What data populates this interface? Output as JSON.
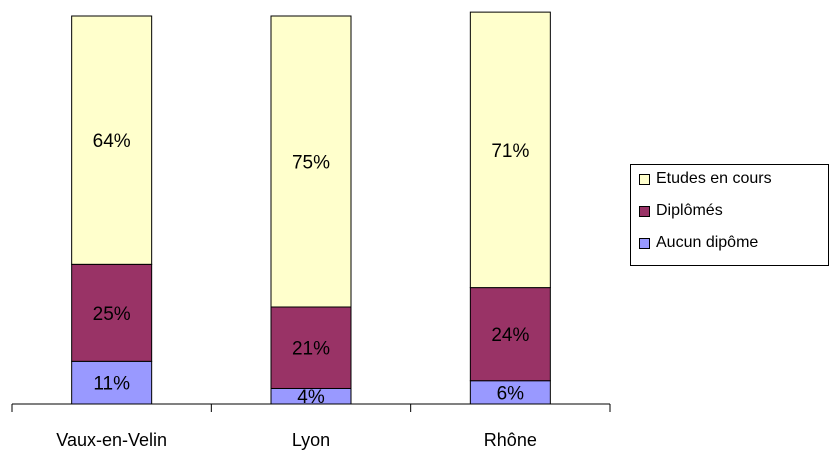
{
  "chart_data": {
    "type": "bar",
    "stacked": true,
    "categories": [
      "Vaux-en-Velin",
      "Lyon",
      "Rhône"
    ],
    "series": [
      {
        "name": "Aucun dipôme",
        "values": [
          11,
          4,
          6
        ],
        "labels": [
          "11%",
          "4%",
          "6%"
        ],
        "color": "#9999ff"
      },
      {
        "name": "Diplômés",
        "values": [
          25,
          21,
          24
        ],
        "labels": [
          "25%",
          "21%",
          "24%"
        ],
        "color": "#993366"
      },
      {
        "name": "Etudes en cours",
        "values": [
          64,
          75,
          71
        ],
        "labels": [
          "64%",
          "75%",
          "71%"
        ],
        "color": "#ffffcc"
      }
    ],
    "ylim": [
      0,
      100
    ],
    "grid": false,
    "legend": "right"
  },
  "legend_order": [
    2,
    1,
    0
  ]
}
